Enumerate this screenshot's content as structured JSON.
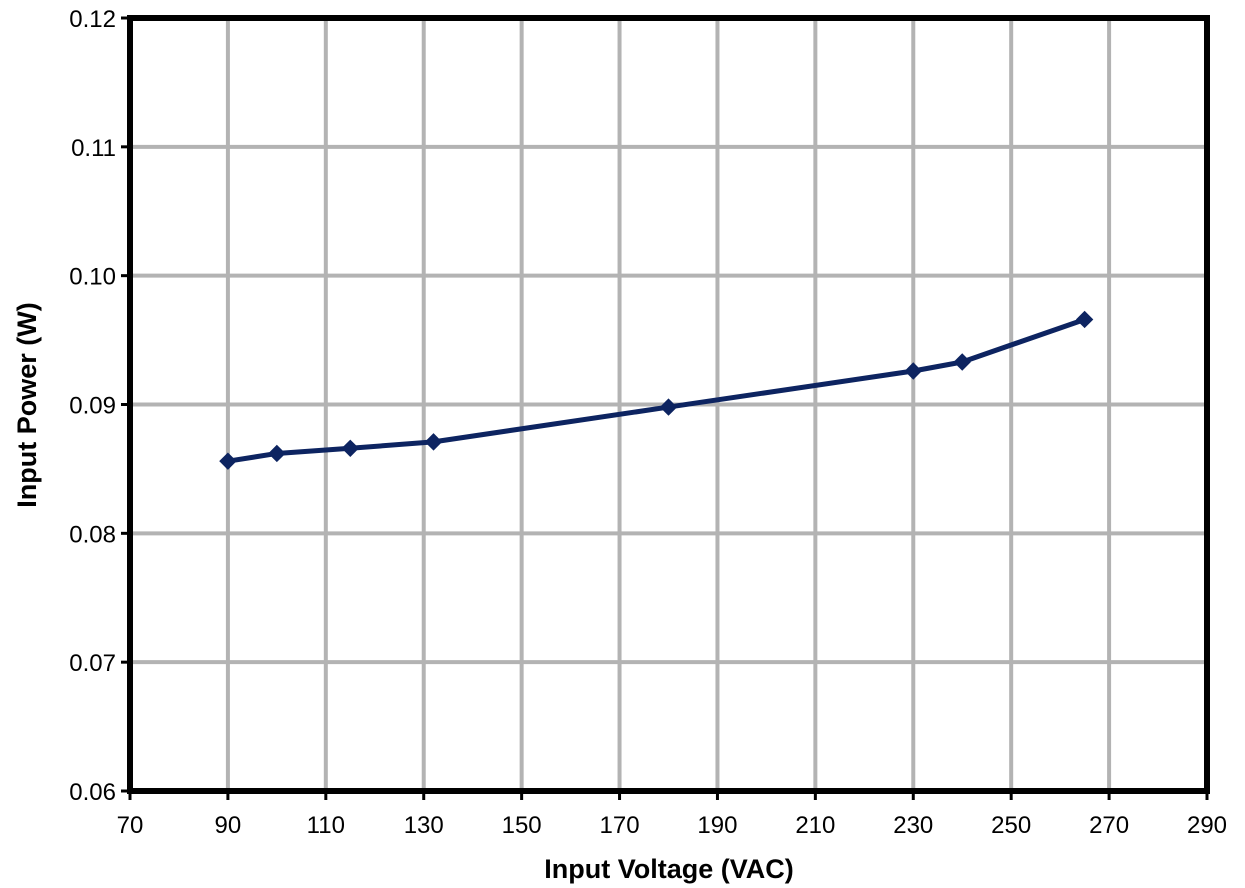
{
  "chart_data": {
    "type": "line",
    "title": "",
    "xlabel": "Input Voltage (VAC)",
    "ylabel": "Input Power (W)",
    "xlim": [
      70,
      290
    ],
    "ylim": [
      0.06,
      0.12
    ],
    "x_ticks": [
      70,
      90,
      110,
      130,
      150,
      170,
      190,
      210,
      230,
      250,
      270,
      290
    ],
    "x_tick_labels": [
      "70",
      "90",
      "110",
      "130",
      "150",
      "170",
      "190",
      "210",
      "230",
      "250",
      "270",
      "290"
    ],
    "y_ticks": [
      0.06,
      0.07,
      0.08,
      0.09,
      0.1,
      0.11,
      0.12
    ],
    "y_tick_labels": [
      "0.06",
      "0.07",
      "0.08",
      "0.09",
      "0.10",
      "0.11",
      "0.12"
    ],
    "grid": true,
    "legend": "none",
    "series": [
      {
        "color": "#0d2461",
        "marker": "diamond",
        "points": [
          {
            "x": 90,
            "y": 0.0856
          },
          {
            "x": 100,
            "y": 0.0862
          },
          {
            "x": 115,
            "y": 0.0866
          },
          {
            "x": 132,
            "y": 0.0871
          },
          {
            "x": 180,
            "y": 0.0898
          },
          {
            "x": 230,
            "y": 0.0926
          },
          {
            "x": 240,
            "y": 0.0933
          },
          {
            "x": 265,
            "y": 0.0966
          }
        ]
      }
    ],
    "colors": {
      "grid": "#b3b3b3",
      "frame": "#000000",
      "background": "#ffffff"
    }
  }
}
